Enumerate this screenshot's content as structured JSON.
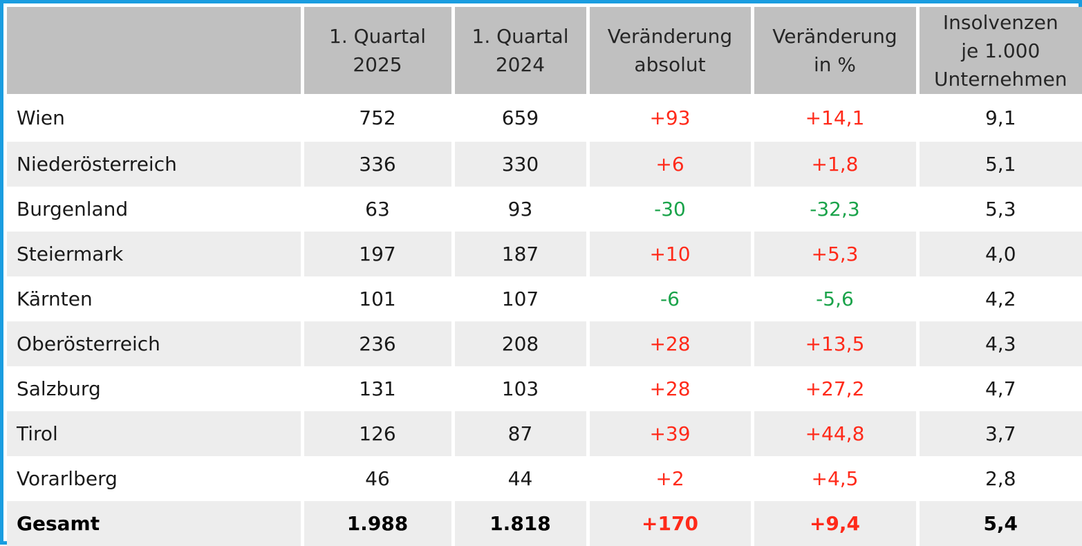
{
  "table": {
    "headers": [
      "",
      "1. Quartal\n2025",
      "1. Quartal\n2024",
      "Veränderung\nabsolut",
      "Veränderung\nin %",
      "Insolvenzen\nje 1.000\nUnternehmen"
    ],
    "rows": [
      {
        "region": "Wien",
        "q1_2025": "752",
        "q1_2024": "659",
        "change_abs": "+93",
        "change_pct": "+14,1",
        "per_1000": "9,1",
        "trend": "up"
      },
      {
        "region": "Niederösterreich",
        "q1_2025": "336",
        "q1_2024": "330",
        "change_abs": "+6",
        "change_pct": "+1,8",
        "per_1000": "5,1",
        "trend": "up"
      },
      {
        "region": "Burgenland",
        "q1_2025": "63",
        "q1_2024": "93",
        "change_abs": "-30",
        "change_pct": "-32,3",
        "per_1000": "5,3",
        "trend": "down"
      },
      {
        "region": "Steiermark",
        "q1_2025": "197",
        "q1_2024": "187",
        "change_abs": "+10",
        "change_pct": "+5,3",
        "per_1000": "4,0",
        "trend": "up"
      },
      {
        "region": "Kärnten",
        "q1_2025": "101",
        "q1_2024": "107",
        "change_abs": "-6",
        "change_pct": "-5,6",
        "per_1000": "4,2",
        "trend": "down"
      },
      {
        "region": "Oberösterreich",
        "q1_2025": "236",
        "q1_2024": "208",
        "change_abs": "+28",
        "change_pct": "+13,5",
        "per_1000": "4,3",
        "trend": "up"
      },
      {
        "region": "Salzburg",
        "q1_2025": "131",
        "q1_2024": "103",
        "change_abs": "+28",
        "change_pct": "+27,2",
        "per_1000": "4,7",
        "trend": "up"
      },
      {
        "region": "Tirol",
        "q1_2025": "126",
        "q1_2024": "87",
        "change_abs": "+39",
        "change_pct": "+44,8",
        "per_1000": "3,7",
        "trend": "up"
      },
      {
        "region": "Vorarlberg",
        "q1_2025": "46",
        "q1_2024": "44",
        "change_abs": "+2",
        "change_pct": "+4,5",
        "per_1000": "2,8",
        "trend": "up"
      }
    ],
    "total": {
      "region": "Gesamt",
      "q1_2025": "1.988",
      "q1_2024": "1.818",
      "change_abs": "+170",
      "change_pct": "+9,4",
      "per_1000": "5,4",
      "trend": "up"
    }
  },
  "colors": {
    "frame": "#1a9de0",
    "header_bg": "#c0c0c0",
    "row_alt_bg": "#ededed",
    "increase": "#ff2a1a",
    "decrease": "#1aa34a"
  }
}
